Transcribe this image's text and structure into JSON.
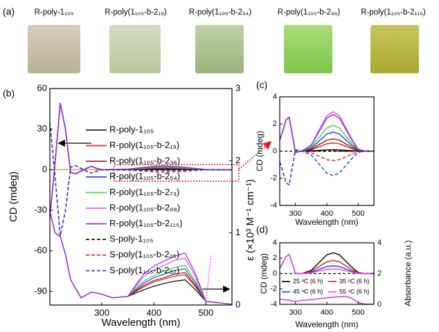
{
  "photo_strip": {
    "label": "(a)",
    "captions": [
      "R-poly-1₁₀₅",
      "R-poly(1₁₀₅-b-2₁₉)",
      "R-poly(1₁₀₅-b-2₅₄)",
      "R-poly(1₁₀₅-b-2₉₈)",
      "R-poly(1₁₀₅-b-2₁₁₅)"
    ]
  },
  "chart_data": [
    {
      "type": "line",
      "label": "(b)",
      "xlabel": "Wavelength (nm)",
      "ylabel": "CD (mdeg)",
      "y2label": "ε (×10³ M⁻¹ cm⁻¹)",
      "xlim": [
        200,
        550
      ],
      "xticks": [
        300,
        400,
        500
      ],
      "ylim": [
        -100,
        60
      ],
      "yticks": [
        -90,
        -60,
        -30,
        0,
        30,
        60
      ],
      "y2lim": [
        0,
        3
      ],
      "y2ticks": [
        0,
        1,
        2,
        3
      ],
      "x": [
        200,
        210,
        220,
        230,
        240,
        250,
        260,
        270,
        280,
        290,
        300,
        350,
        400,
        420,
        450,
        500,
        550
      ],
      "x_absorbance": [
        200,
        210,
        220,
        230,
        240,
        260,
        280,
        300,
        320,
        350,
        380,
        400,
        420,
        440,
        460,
        480,
        500,
        550
      ],
      "series": [
        {
          "name": "R-poly-1₁₀₅",
          "color": "#000000",
          "dash": false,
          "values": [
            -35,
            5,
            49,
            30,
            -2,
            -3,
            -1,
            1,
            2.5,
            1,
            0,
            0.02,
            0.09,
            0.1,
            0.08,
            0.01,
            0
          ],
          "absorbance": [
            1.3,
            1.0,
            0.95,
            0.7,
            0.35,
            0.1,
            0.18,
            0.15,
            0.1,
            0.12,
            0.21,
            0.26,
            0.3,
            0.33,
            0.35,
            0.21,
            0.05,
            0.01
          ]
        },
        {
          "name": "R-poly(1₁₀₅-b-2₁₉)",
          "color": "#e8151b",
          "dash": false,
          "values": [
            -35,
            5,
            49,
            30,
            -2,
            -3,
            -1,
            1,
            2.5,
            1,
            0,
            0.09,
            0.54,
            0.6,
            0.45,
            0.03,
            0
          ],
          "absorbance": [
            1.3,
            1.0,
            0.95,
            0.7,
            0.35,
            0.1,
            0.18,
            0.15,
            0.1,
            0.12,
            0.25,
            0.32,
            0.36,
            0.4,
            0.42,
            0.25,
            0.05,
            0.01
          ]
        },
        {
          "name": "R-poly(1₁₀₅-b-2₃₆)",
          "color": "#8b1a1a",
          "dash": false,
          "values": [
            -35,
            5,
            49,
            30,
            -2,
            -3,
            -1,
            1,
            2.5,
            1,
            0,
            0.14,
            0.81,
            0.9,
            0.68,
            0.05,
            0
          ],
          "absorbance": [
            1.3,
            1.0,
            0.95,
            0.7,
            0.35,
            0.1,
            0.18,
            0.15,
            0.1,
            0.12,
            0.27,
            0.34,
            0.38,
            0.43,
            0.45,
            0.27,
            0.05,
            0.01
          ]
        },
        {
          "name": "R-poly(1₁₀₅-b-2₅₄)",
          "color": "#1f3fd6",
          "dash": false,
          "values": [
            -35,
            5,
            49,
            30,
            -2,
            -3,
            -1,
            1,
            2.5,
            1,
            0,
            0.21,
            1.26,
            1.4,
            1.05,
            0.07,
            0
          ],
          "absorbance": [
            1.3,
            1.0,
            0.95,
            0.7,
            0.35,
            0.1,
            0.18,
            0.15,
            0.1,
            0.12,
            0.3,
            0.38,
            0.43,
            0.48,
            0.5,
            0.3,
            0.05,
            0.01
          ]
        },
        {
          "name": "R-poly(1₁₀₅-b-2₇₃)",
          "color": "#3ad43a",
          "dash": false,
          "values": [
            -35,
            5,
            49,
            30,
            -2,
            -3,
            -1,
            1,
            2.5,
            1,
            0,
            0.29,
            1.71,
            1.9,
            1.43,
            0.1,
            0
          ],
          "absorbance": [
            1.3,
            1.0,
            0.95,
            0.7,
            0.35,
            0.1,
            0.18,
            0.15,
            0.1,
            0.12,
            0.33,
            0.41,
            0.47,
            0.52,
            0.55,
            0.33,
            0.05,
            0.01
          ]
        },
        {
          "name": "R-poly(1₁₀₅-b-2₉₈)",
          "color": "#ee3ee8",
          "dash": false,
          "values": [
            -35,
            5,
            49,
            30,
            -2,
            -3,
            -1,
            1,
            2.5,
            1,
            0,
            0.44,
            2.61,
            2.9,
            2.18,
            0.15,
            0
          ],
          "absorbance": [
            1.3,
            1.0,
            0.95,
            0.7,
            0.35,
            0.1,
            0.18,
            0.15,
            0.1,
            0.12,
            0.39,
            0.49,
            0.55,
            0.62,
            0.65,
            0.39,
            0.05,
            0.01
          ]
        },
        {
          "name": "R-poly(1₁₀₅-b-2₁₁₅)",
          "color": "#8a2be2",
          "dash": false,
          "values": [
            -35,
            5,
            49,
            30,
            -2,
            -3,
            -1,
            1,
            2.5,
            1,
            0,
            0.41,
            2.43,
            2.7,
            2.03,
            0.14,
            0
          ],
          "absorbance": [
            1.3,
            1.0,
            0.95,
            0.7,
            0.35,
            0.1,
            0.18,
            0.15,
            0.1,
            0.12,
            0.43,
            0.54,
            0.61,
            0.68,
            0.72,
            0.43,
            0.05,
            0.01
          ]
        },
        {
          "name": "S-poly-1₁₀₅",
          "color": "#000000",
          "dash": true,
          "values": [
            35,
            -5,
            -49,
            -30,
            2,
            3,
            1,
            -1,
            -2.5,
            -1,
            0,
            0,
            0,
            0,
            0,
            0,
            0
          ]
        },
        {
          "name": "S-poly(1₁₀₅-b-2₂₅)",
          "color": "#e8151b",
          "dash": true,
          "values": [
            35,
            -5,
            -49,
            -30,
            2,
            3,
            1,
            -1,
            -2.5,
            -1,
            0,
            -0.11,
            -0.63,
            -0.7,
            -0.53,
            -0.04,
            0
          ]
        },
        {
          "name": "S-poly(1₁₀₅-b-2₅₂)",
          "color": "#1f3fd6",
          "dash": true,
          "values": [
            35,
            -5,
            -49,
            -30,
            2,
            3,
            1,
            -1,
            -2.5,
            -1,
            0,
            -0.27,
            -1.62,
            -1.8,
            -1.35,
            -0.09,
            0
          ]
        }
      ]
    },
    {
      "type": "line",
      "label": "(c)",
      "xlabel": "Wavelength (nm)",
      "ylabel": "CD (mdeg)",
      "xlim": [
        250,
        550
      ],
      "xticks": [
        300,
        400,
        500
      ],
      "ylim": [
        -4,
        4
      ],
      "yticks": [
        -4,
        -2,
        0,
        2,
        4
      ],
      "x": [
        250,
        260,
        270,
        280,
        290,
        300,
        320,
        350,
        380,
        400,
        420,
        440,
        460,
        480,
        500,
        520,
        550
      ],
      "series": [
        {
          "color": "#000000",
          "dash": false,
          "values": [
            0.8,
            1.5,
            2.3,
            2.5,
            1.2,
            -0.1,
            0,
            0.02,
            0.06,
            0.09,
            0.1,
            0.09,
            0.06,
            0.03,
            0.01,
            0,
            0
          ]
        },
        {
          "color": "#e8151b",
          "dash": false,
          "values": [
            0.8,
            1.5,
            2.3,
            2.5,
            1.2,
            -0.1,
            0,
            0.09,
            0.36,
            0.54,
            0.6,
            0.54,
            0.36,
            0.18,
            0.03,
            0,
            0
          ]
        },
        {
          "color": "#8b1a1a",
          "dash": false,
          "values": [
            0.8,
            1.5,
            2.3,
            2.5,
            1.2,
            -0.1,
            0,
            0.14,
            0.54,
            0.81,
            0.9,
            0.81,
            0.54,
            0.27,
            0.05,
            0,
            0
          ]
        },
        {
          "color": "#1f3fd6",
          "dash": false,
          "values": [
            0.8,
            1.5,
            2.3,
            2.5,
            1.2,
            -0.1,
            0,
            0.21,
            0.84,
            1.26,
            1.4,
            1.26,
            0.84,
            0.42,
            0.07,
            0,
            0
          ]
        },
        {
          "color": "#3ad43a",
          "dash": false,
          "values": [
            0.8,
            1.5,
            2.3,
            2.5,
            1.2,
            -0.1,
            0,
            0.29,
            1.14,
            1.71,
            1.9,
            1.71,
            1.14,
            0.57,
            0.1,
            0,
            0
          ]
        },
        {
          "color": "#ee3ee8",
          "dash": false,
          "values": [
            0.8,
            1.5,
            2.3,
            2.5,
            1.2,
            -0.1,
            0,
            0.44,
            1.74,
            2.61,
            2.9,
            2.61,
            1.74,
            0.87,
            0.15,
            0,
            0
          ]
        },
        {
          "color": "#8a2be2",
          "dash": false,
          "values": [
            0.8,
            1.5,
            2.3,
            2.5,
            1.2,
            -0.1,
            0,
            0.41,
            1.62,
            2.43,
            2.7,
            2.43,
            1.62,
            0.81,
            0.14,
            0,
            0
          ]
        },
        {
          "color": "#000000",
          "dash": true,
          "values": [
            -0.8,
            -1.5,
            -2.3,
            -2.5,
            -1.2,
            0.1,
            0,
            0,
            0,
            0,
            0,
            0,
            0,
            0,
            0,
            0,
            0
          ]
        },
        {
          "color": "#e8151b",
          "dash": true,
          "values": [
            -0.8,
            -1.5,
            -2.3,
            -2.5,
            -1.2,
            0.1,
            0,
            -0.11,
            -0.42,
            -0.63,
            -0.7,
            -0.63,
            -0.42,
            -0.21,
            -0.04,
            0,
            0
          ]
        },
        {
          "color": "#1f3fd6",
          "dash": true,
          "values": [
            -0.8,
            -1.5,
            -2.3,
            -2.5,
            -1.2,
            0.1,
            0,
            -0.27,
            -1.08,
            -1.62,
            -1.8,
            -1.62,
            -1.08,
            -0.54,
            -0.09,
            0,
            0
          ]
        }
      ]
    },
    {
      "type": "line",
      "label": "(d)",
      "xlabel": "Wavelength (nm)",
      "ylabel": "CD (mdeg)",
      "y2label": "Absorbance (a.u.)",
      "xlim": [
        250,
        550
      ],
      "xticks": [
        300,
        400,
        500
      ],
      "ylim": [
        -4,
        4
      ],
      "yticks": [
        -4,
        -2,
        0,
        2,
        4
      ],
      "y2lim": [
        0,
        4
      ],
      "y2ticks": [
        0,
        2,
        4
      ],
      "x": [
        250,
        260,
        270,
        280,
        290,
        300,
        320,
        350,
        380,
        400,
        420,
        440,
        460,
        480,
        500,
        520,
        550
      ],
      "series": [
        {
          "name": "25 ᵒC (6 h)",
          "color": "#000000",
          "dash": false,
          "values": [
            0.7,
            1.4,
            2.2,
            2.5,
            1.3,
            0,
            0,
            0.41,
            1.62,
            2.43,
            2.7,
            2.43,
            1.62,
            0.81,
            0.14,
            0,
            0
          ],
          "absorbance": [
            0.35,
            0.3,
            0.28,
            0.27,
            0.22,
            0.2,
            0.25,
            0.3,
            0.38,
            0.42,
            0.46,
            0.5,
            0.52,
            0.4,
            0.12,
            0.02,
            0
          ]
        },
        {
          "name": "35 ᵒC (6 h)",
          "color": "#e8151b",
          "dash": false,
          "values": [
            0.7,
            1.4,
            2.2,
            2.5,
            1.3,
            0,
            0,
            0.26,
            1.02,
            1.53,
            1.7,
            1.53,
            1.02,
            0.51,
            0.09,
            0,
            0
          ],
          "absorbance": [
            0.35,
            0.3,
            0.28,
            0.27,
            0.22,
            0.2,
            0.25,
            0.3,
            0.38,
            0.42,
            0.46,
            0.5,
            0.52,
            0.4,
            0.12,
            0.02,
            0
          ]
        },
        {
          "name": "45 ᵒC (6 h)",
          "color": "#1f3fd6",
          "dash": false,
          "values": [
            0.7,
            1.4,
            2.2,
            2.5,
            1.3,
            0,
            0,
            0.15,
            0.6,
            0.9,
            1,
            0.9,
            0.6,
            0.3,
            0.05,
            0,
            0
          ],
          "absorbance": [
            0.35,
            0.3,
            0.28,
            0.27,
            0.22,
            0.2,
            0.25,
            0.3,
            0.38,
            0.42,
            0.46,
            0.5,
            0.52,
            0.4,
            0.12,
            0.02,
            0
          ]
        },
        {
          "name": "55 ᵒC (6 h)",
          "color": "#ee3ee8",
          "dash": false,
          "values": [
            0.7,
            1.4,
            2.2,
            2.5,
            1.3,
            0,
            0,
            0.09,
            0.36,
            0.54,
            0.6,
            0.54,
            0.36,
            0.18,
            0.03,
            0,
            0
          ],
          "absorbance": [
            0.35,
            0.3,
            0.28,
            0.27,
            0.22,
            0.2,
            0.25,
            0.3,
            0.38,
            0.42,
            0.46,
            0.5,
            0.52,
            0.4,
            0.12,
            0.02,
            0
          ]
        }
      ]
    }
  ]
}
